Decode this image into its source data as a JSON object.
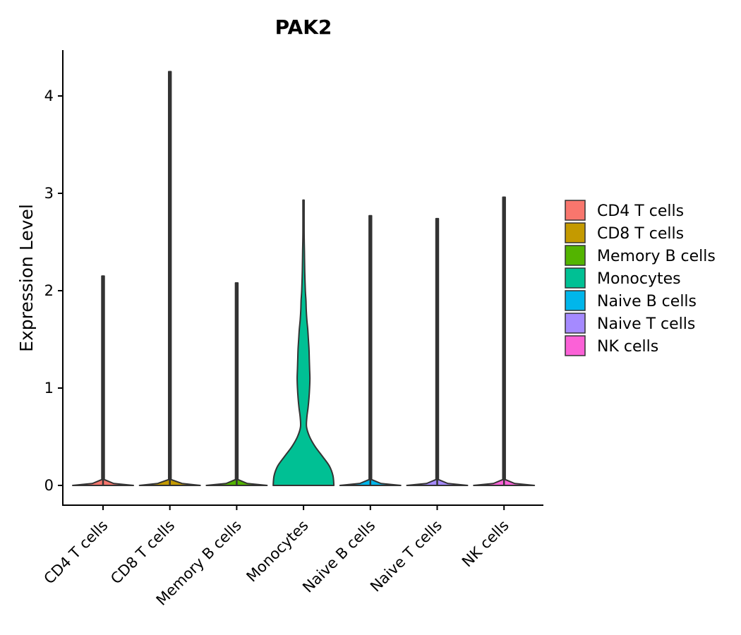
{
  "chart_data": {
    "type": "violin",
    "title": "PAK2",
    "xlabel": "",
    "ylabel": "Expression Level",
    "ylim": [
      -0.2,
      4.45
    ],
    "yticks": [
      0,
      1,
      2,
      3,
      4
    ],
    "ytick_labels": [
      "0",
      "1",
      "2",
      "3",
      "4"
    ],
    "grid": false,
    "legend_position": "right",
    "categories": [
      "CD4 T cells",
      "CD8 T cells",
      "Memory B cells",
      "Monocytes",
      "Naive B cells",
      "Naive T cells",
      "NK cells"
    ],
    "colors": [
      "#F8766D",
      "#C49A00",
      "#53B400",
      "#00C094",
      "#00B6EB",
      "#A58AFF",
      "#FB61D7"
    ],
    "max_values": [
      2.15,
      4.25,
      2.08,
      2.93,
      2.77,
      2.74,
      2.96
    ],
    "density_profiles": [
      [
        [
          0,
          1.0
        ],
        [
          0.02,
          0.35
        ],
        [
          0.06,
          0.04
        ],
        [
          2.15,
          0.04
        ]
      ],
      [
        [
          0,
          1.0
        ],
        [
          0.02,
          0.4
        ],
        [
          0.06,
          0.04
        ],
        [
          4.25,
          0.04
        ]
      ],
      [
        [
          0,
          1.0
        ],
        [
          0.02,
          0.35
        ],
        [
          0.06,
          0.04
        ],
        [
          2.08,
          0.04
        ]
      ],
      [
        [
          0,
          1.0
        ],
        [
          0.1,
          0.97
        ],
        [
          0.2,
          0.85
        ],
        [
          0.3,
          0.62
        ],
        [
          0.4,
          0.38
        ],
        [
          0.5,
          0.2
        ],
        [
          0.6,
          0.1
        ],
        [
          0.7,
          0.11
        ],
        [
          0.8,
          0.15
        ],
        [
          0.9,
          0.18
        ],
        [
          1.0,
          0.2
        ],
        [
          1.1,
          0.21
        ],
        [
          1.2,
          0.2
        ],
        [
          1.3,
          0.19
        ],
        [
          1.4,
          0.18
        ],
        [
          1.5,
          0.16
        ],
        [
          1.6,
          0.14
        ],
        [
          1.7,
          0.11
        ],
        [
          1.8,
          0.09
        ],
        [
          1.9,
          0.08
        ],
        [
          2.0,
          0.06
        ],
        [
          2.2,
          0.04
        ],
        [
          2.4,
          0.03
        ],
        [
          2.6,
          0.02
        ],
        [
          2.93,
          0.02
        ]
      ],
      [
        [
          0,
          1.0
        ],
        [
          0.02,
          0.35
        ],
        [
          0.06,
          0.04
        ],
        [
          2.77,
          0.04
        ]
      ],
      [
        [
          0,
          1.0
        ],
        [
          0.02,
          0.35
        ],
        [
          0.06,
          0.04
        ],
        [
          2.74,
          0.04
        ]
      ],
      [
        [
          0,
          1.0
        ],
        [
          0.02,
          0.35
        ],
        [
          0.06,
          0.04
        ],
        [
          2.96,
          0.04
        ]
      ]
    ],
    "legend": [
      "CD4 T cells",
      "CD8 T cells",
      "Memory B cells",
      "Monocytes",
      "Naive B cells",
      "Naive T cells",
      "NK cells"
    ]
  }
}
